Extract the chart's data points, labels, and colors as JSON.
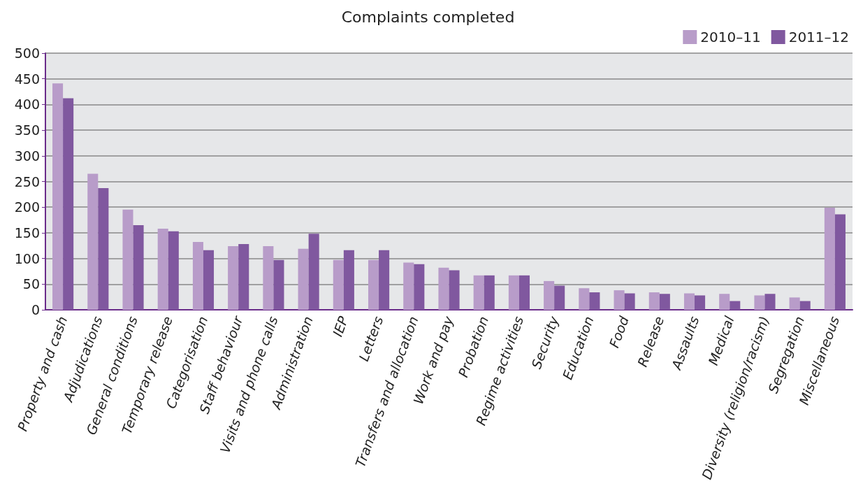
{
  "chart_data": {
    "type": "bar",
    "title": "Complaints completed",
    "categories": [
      "Property and cash",
      "Adjudications",
      "General conditions",
      "Temporary release",
      "Categorisation",
      "Staff behaviour",
      "Visits and phone calls",
      "Administration",
      "IEP",
      "Letters",
      "Transfers and allocation",
      "Work and pay",
      "Probation",
      "Regime activities",
      "Security",
      "Education",
      "Food",
      "Release",
      "Assaults",
      "Medical",
      "Diversity (religion/racism)",
      "Segregation",
      "Miscellaneous"
    ],
    "series": [
      {
        "name": "2010–11",
        "color": "#b89cc9",
        "values": [
          441,
          265,
          195,
          158,
          132,
          124,
          124,
          119,
          97,
          97,
          92,
          82,
          67,
          67,
          56,
          42,
          38,
          34,
          32,
          31,
          28,
          24,
          199
        ]
      },
      {
        "name": "2011–12",
        "color": "#80589f",
        "values": [
          412,
          237,
          165,
          153,
          116,
          128,
          97,
          148,
          116,
          116,
          89,
          77,
          67,
          67,
          47,
          34,
          32,
          31,
          28,
          17,
          31,
          17,
          186
        ]
      }
    ],
    "ylim": [
      0,
      500
    ],
    "yticks": [
      0,
      50,
      100,
      150,
      200,
      250,
      300,
      350,
      400,
      450,
      500
    ],
    "grid": "y",
    "legend": "top right"
  }
}
